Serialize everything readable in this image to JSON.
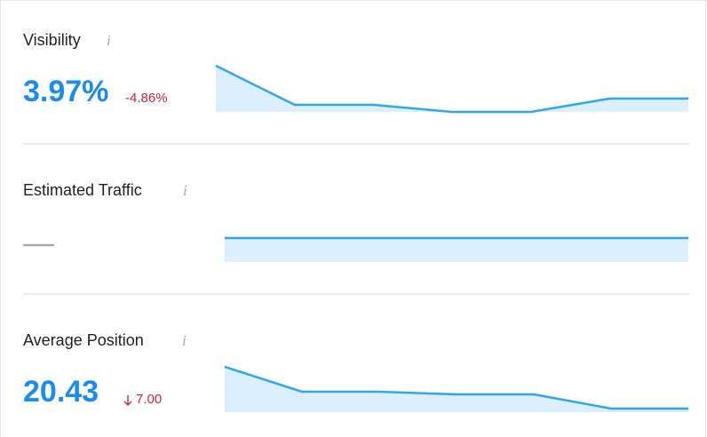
{
  "metrics": [
    {
      "label": "Visibility",
      "value": "3.97%",
      "change": "-4.86%",
      "sparkline": {
        "values": [
          52,
          8,
          8,
          0,
          0,
          15,
          15
        ],
        "ylim": [
          0,
          52
        ]
      }
    },
    {
      "label": "Estimated Traffic",
      "sparkline": {
        "values": [
          27,
          27,
          27,
          27,
          27,
          27,
          27
        ],
        "ylim": [
          0,
          27
        ]
      }
    },
    {
      "label": "Average Position",
      "value": "20.43",
      "change": "7.00",
      "sparkline": {
        "values": [
          51,
          23,
          23,
          20,
          20,
          4,
          4
        ],
        "ylim": [
          0,
          51
        ]
      }
    }
  ]
}
